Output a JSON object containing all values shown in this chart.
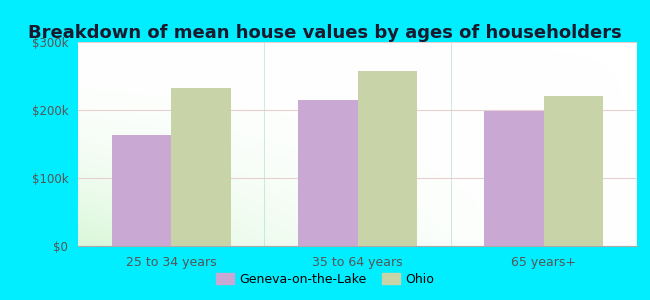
{
  "title": "Breakdown of mean house values by ages of householders",
  "categories": [
    "25 to 34 years",
    "35 to 64 years",
    "65 years+"
  ],
  "geneva_values": [
    163000,
    215000,
    198000
  ],
  "ohio_values": [
    232000,
    258000,
    221000
  ],
  "geneva_color": "#c9a8d4",
  "ohio_color": "#c8d4a8",
  "ylim": [
    0,
    300000
  ],
  "yticks": [
    0,
    100000,
    200000,
    300000
  ],
  "ytick_labels": [
    "$0",
    "$100k",
    "$200k",
    "$300k"
  ],
  "background_outer": "#00eeff",
  "legend_labels": [
    "Geneva-on-the-Lake",
    "Ohio"
  ],
  "bar_width": 0.32,
  "title_fontsize": 13,
  "title_color": "#1a1a2e"
}
